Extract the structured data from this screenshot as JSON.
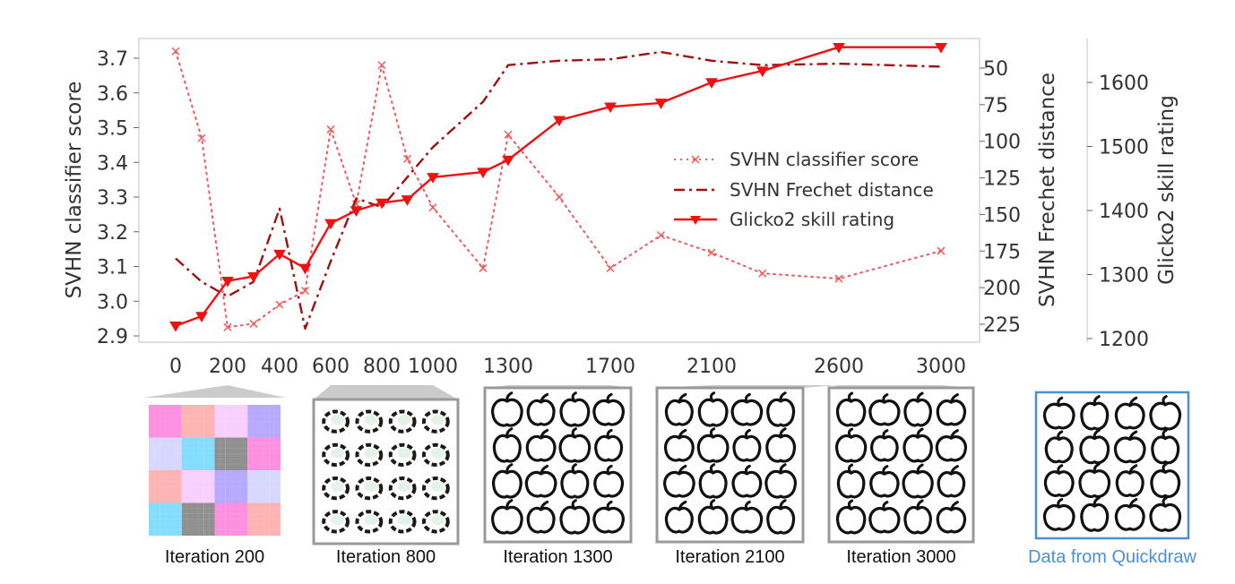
{
  "chart_data": {
    "type": "line",
    "x": [
      0,
      100,
      200,
      300,
      400,
      500,
      600,
      700,
      800,
      900,
      1000,
      1200,
      1300,
      1500,
      1700,
      1900,
      2100,
      2300,
      2600,
      3000
    ],
    "x_ticks": [
      0,
      200,
      400,
      600,
      800,
      1000,
      1300,
      1700,
      2100,
      2600,
      3000
    ],
    "x_tick_labels": [
      "0",
      "200",
      "400",
      "600",
      "800",
      "1000",
      "1300",
      "1700",
      "2100",
      "2600",
      "3000"
    ],
    "axes": {
      "left": {
        "label": "SVHN classifier score",
        "range": [
          2.88,
          3.74
        ],
        "ticks": [
          2.9,
          3.0,
          3.1,
          3.2,
          3.3,
          3.4,
          3.5,
          3.6,
          3.7
        ],
        "tick_labels": [
          "2.9",
          "3.0",
          "3.1",
          "3.2",
          "3.3",
          "3.4",
          "3.5",
          "3.6",
          "3.7"
        ]
      },
      "right1": {
        "label": "SVHN Frechet distance",
        "range": [
          238,
          28
        ],
        "inverted": true,
        "ticks": [
          50,
          75,
          100,
          125,
          150,
          175,
          200,
          225
        ],
        "tick_labels": [
          "50",
          "75",
          "100",
          "125",
          "150",
          "175",
          "200",
          "225"
        ]
      },
      "right2": {
        "label": "Glicko2 skill rating",
        "range": [
          1195,
          1680
        ],
        "ticks": [
          1200,
          1300,
          1400,
          1500,
          1600
        ],
        "tick_labels": [
          "1200",
          "1300",
          "1400",
          "1500",
          "1600"
        ]
      }
    },
    "series": [
      {
        "name": "SVHN classifier score",
        "axis": "left",
        "style": "dotted",
        "marker": "x",
        "color": "#f05a5a",
        "x": [
          0,
          100,
          200,
          300,
          400,
          500,
          600,
          700,
          800,
          900,
          1000,
          1200,
          1300,
          1500,
          1700,
          1900,
          2100,
          2300,
          2600,
          3000
        ],
        "values": [
          3.72,
          3.47,
          2.925,
          2.935,
          2.99,
          3.03,
          3.495,
          3.28,
          3.68,
          3.41,
          3.27,
          3.095,
          3.48,
          3.3,
          3.095,
          3.19,
          3.14,
          3.08,
          3.065,
          3.145
        ]
      },
      {
        "name": "SVHN Frechet distance",
        "axis": "right1",
        "style": "dashdot",
        "color": "#a01010",
        "x": [
          0,
          100,
          200,
          300,
          400,
          500,
          600,
          700,
          800,
          1000,
          1200,
          1300,
          1500,
          1700,
          1900,
          2100,
          2300,
          2600,
          3000
        ],
        "values": [
          180,
          196,
          206,
          196,
          146,
          228,
          182,
          139,
          145,
          104,
          73,
          48,
          45,
          44,
          39,
          45,
          48,
          47,
          49
        ]
      },
      {
        "name": "Glicko2 skill rating",
        "axis": "right2",
        "style": "solid",
        "marker": "triangle-down",
        "color": "#ee1111",
        "x": [
          0,
          100,
          200,
          300,
          400,
          500,
          600,
          700,
          800,
          900,
          1000,
          1200,
          1300,
          1500,
          1700,
          1900,
          2100,
          2300,
          2600,
          3000
        ],
        "values": [
          1220,
          1235,
          1290,
          1297,
          1332,
          1310,
          1380,
          1400,
          1412,
          1417,
          1452,
          1460,
          1479,
          1541,
          1562,
          1568,
          1600,
          1618,
          1655,
          1655
        ]
      }
    ],
    "legend": {
      "placement": "center-right"
    },
    "grid": false
  },
  "thumbnails": [
    {
      "caption": "Iteration 200",
      "kind": "noise"
    },
    {
      "caption": "Iteration 800",
      "kind": "blobs"
    },
    {
      "caption": "Iteration 1300",
      "kind": "apples"
    },
    {
      "caption": "Iteration 2100",
      "kind": "apples"
    },
    {
      "caption": "Iteration 3000",
      "kind": "apples"
    },
    {
      "caption": "Data from Quickdraw",
      "kind": "data"
    }
  ],
  "colors": {
    "frame": "#999999",
    "wedge": "#c8c8c8",
    "data_frame": "#4a90d9"
  }
}
